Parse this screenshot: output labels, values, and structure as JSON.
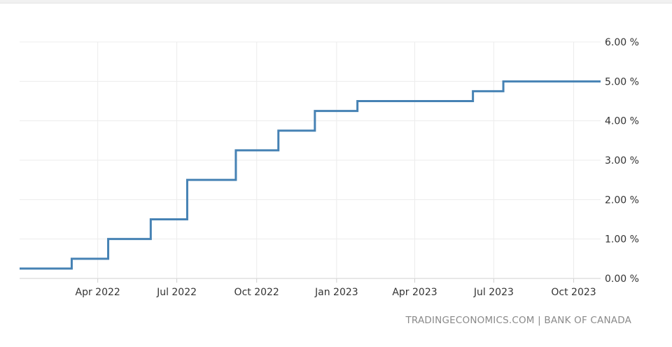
{
  "chart_data": {
    "type": "line",
    "step": true,
    "title": "",
    "xlabel": "",
    "ylabel": "",
    "ylim": [
      0,
      6
    ],
    "xlim": [
      "2022-01-01",
      "2023-11-01"
    ],
    "y_ticks": [
      0,
      1,
      2,
      3,
      4,
      5,
      6
    ],
    "y_tick_labels": [
      "0.00 %",
      "1.00 %",
      "2.00 %",
      "3.00 %",
      "4.00 %",
      "5.00 %",
      "6.00 %"
    ],
    "y_axis_position": "right",
    "x_ticks": [
      "2022-04-01",
      "2022-07-01",
      "2022-10-01",
      "2023-01-01",
      "2023-04-01",
      "2023-07-01",
      "2023-10-01"
    ],
    "x_tick_labels": [
      "Apr 2022",
      "Jul 2022",
      "Oct 2022",
      "Jan 2023",
      "Apr 2023",
      "Jul 2023",
      "Oct 2023"
    ],
    "grid": true,
    "line_color": "#4682b4",
    "series": [
      {
        "x": [
          "2022-01-01",
          "2022-03-02",
          "2022-04-13",
          "2022-06-01",
          "2022-07-13",
          "2022-09-07",
          "2022-10-26",
          "2022-12-07",
          "2023-01-25",
          "2023-06-07",
          "2023-07-12",
          "2023-11-01"
        ],
        "values": [
          0.25,
          0.5,
          1.0,
          1.5,
          2.5,
          3.25,
          3.75,
          4.25,
          4.5,
          4.75,
          5.0,
          5.0
        ]
      }
    ]
  },
  "source": "TRADINGECONOMICS.COM | BANK OF CANADA"
}
